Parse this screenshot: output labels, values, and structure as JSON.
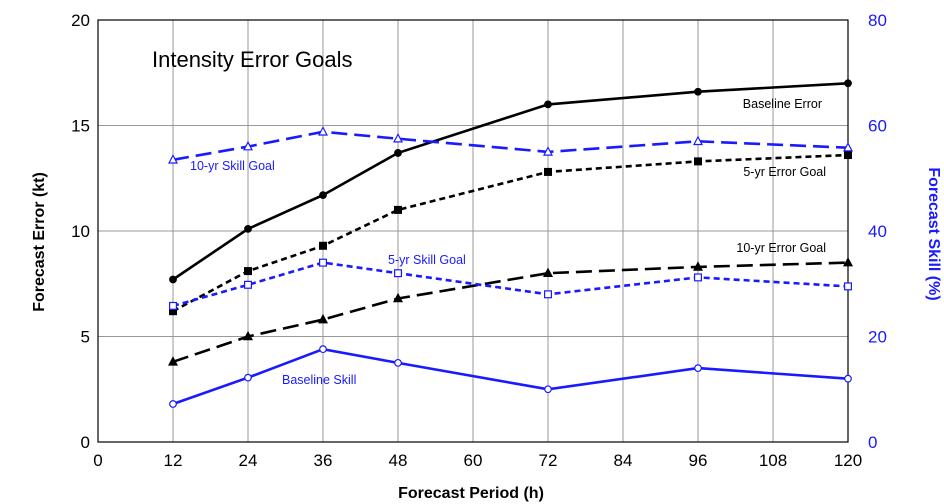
{
  "chart_data": {
    "type": "line",
    "title": "Intensity Error Goals",
    "xlabel": "Forecast Period (h)",
    "ylabel": "Forecast Error (kt)",
    "y2label": "Forecast Skill (%)",
    "xlim": [
      0,
      120
    ],
    "ylim": [
      0,
      20
    ],
    "y2lim": [
      0,
      80
    ],
    "xticks": [
      0,
      12,
      24,
      36,
      48,
      60,
      72,
      84,
      96,
      108,
      120
    ],
    "yticks": [
      0,
      5,
      10,
      15,
      20
    ],
    "y2ticks": [
      0,
      20,
      40,
      60,
      80
    ],
    "grid": true,
    "colors": {
      "error": "#000000",
      "skill": "#1a1aff"
    },
    "series": [
      {
        "name": "Baseline Error",
        "axis": "left",
        "style": "solid",
        "marker": "circle-filled",
        "x": [
          12,
          24,
          36,
          48,
          72,
          96,
          120
        ],
        "values": [
          7.7,
          10.1,
          11.7,
          13.7,
          16.0,
          16.6,
          17.0
        ]
      },
      {
        "name": "5-yr Error Goal",
        "axis": "left",
        "style": "short-dash",
        "marker": "square-filled",
        "x": [
          12,
          24,
          36,
          48,
          72,
          96,
          120
        ],
        "values": [
          6.2,
          8.1,
          9.3,
          11.0,
          12.8,
          13.3,
          13.6
        ]
      },
      {
        "name": "10-yr Error Goal",
        "axis": "left",
        "style": "long-dash",
        "marker": "triangle-filled",
        "x": [
          12,
          24,
          36,
          48,
          72,
          96,
          120
        ],
        "values": [
          3.8,
          5.0,
          5.8,
          6.8,
          8.0,
          8.3,
          8.5
        ]
      },
      {
        "name": "10-yr Skill Goal",
        "axis": "right",
        "style": "long-dash",
        "marker": "triangle-open",
        "x": [
          12,
          24,
          36,
          48,
          72,
          96,
          120
        ],
        "values": [
          53.5,
          56.0,
          58.8,
          57.5,
          55.0,
          57.0,
          55.8
        ]
      },
      {
        "name": "5-yr Skill Goal",
        "axis": "right",
        "style": "short-dash",
        "marker": "square-open",
        "x": [
          12,
          24,
          36,
          48,
          72,
          96,
          120
        ],
        "values": [
          25.8,
          29.8,
          34.0,
          32.0,
          28.0,
          31.2,
          29.5
        ]
      },
      {
        "name": "Baseline Skill",
        "axis": "right",
        "style": "solid",
        "marker": "circle-open",
        "x": [
          12,
          24,
          36,
          48,
          72,
          96,
          120
        ],
        "values": [
          7.2,
          12.2,
          17.6,
          15.0,
          10.0,
          14.0,
          12.0
        ]
      }
    ]
  }
}
